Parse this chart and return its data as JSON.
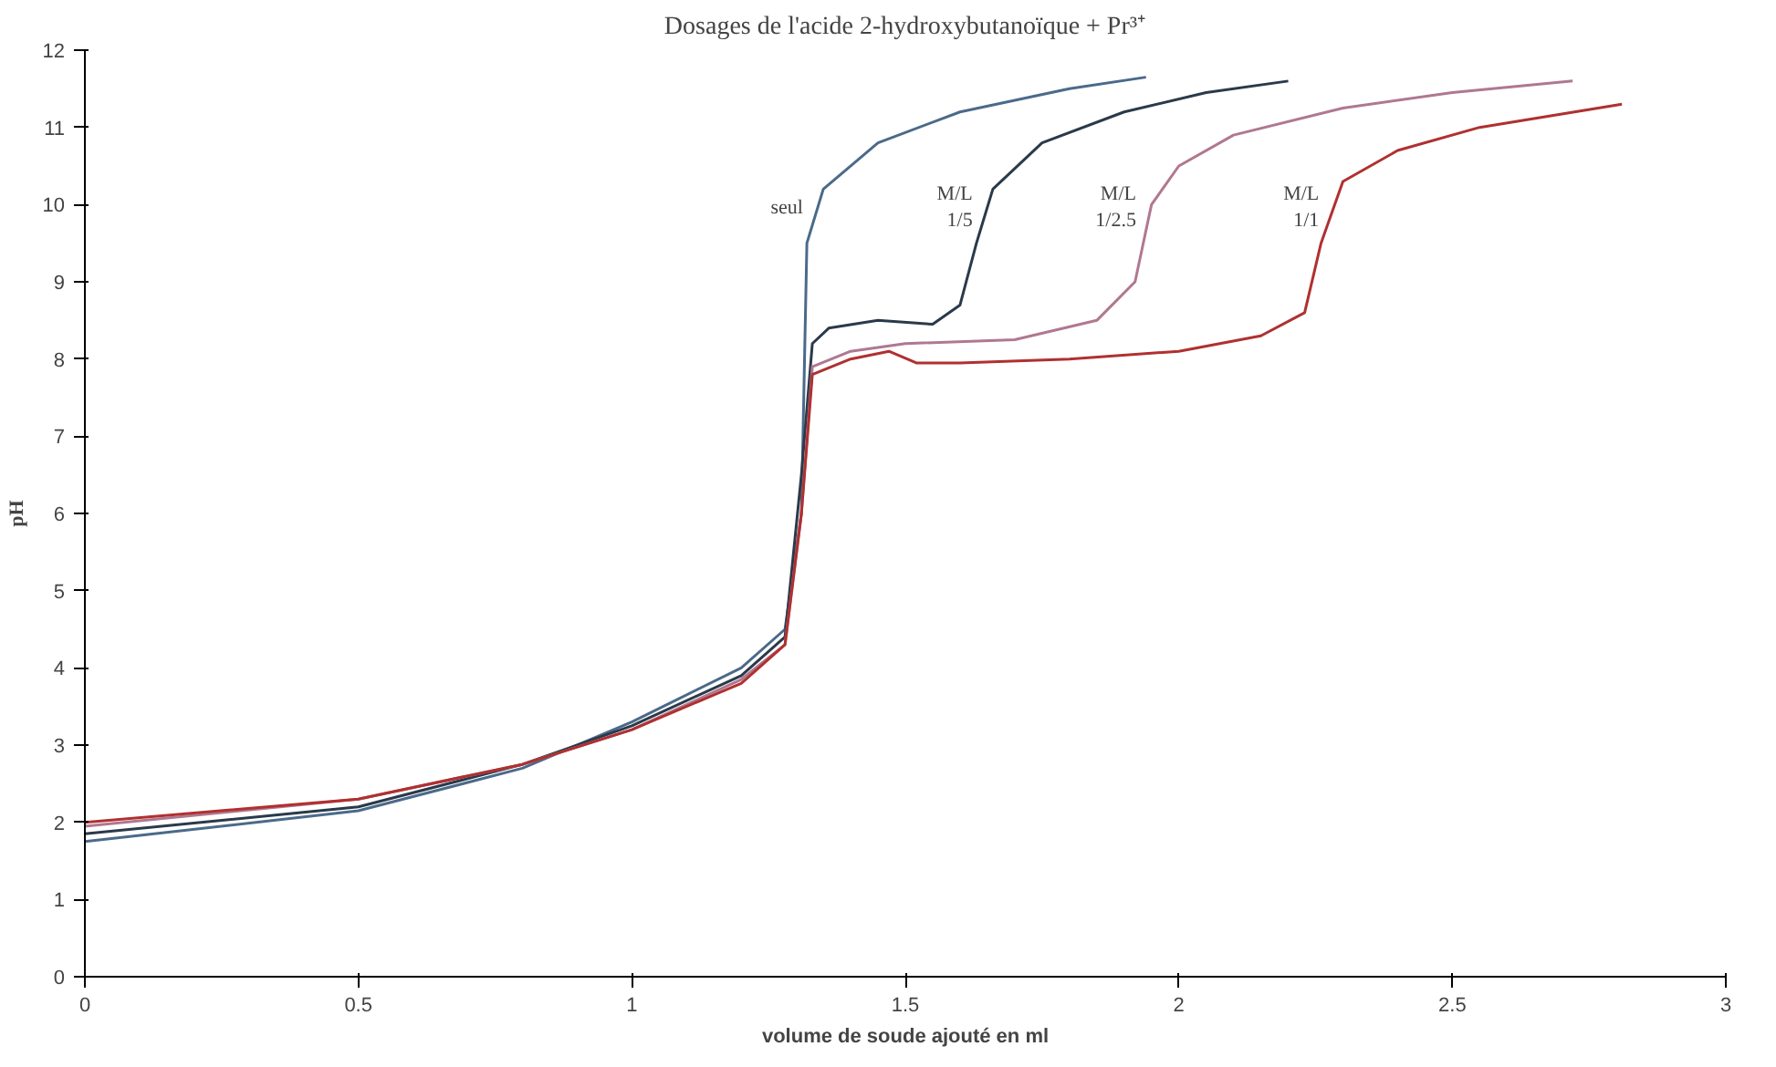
{
  "chart_data": {
    "type": "line",
    "title": "Dosages de l'acide 2-hydroxybutanoïque + Pr³⁺",
    "xlabel": "volume de soude ajouté en ml",
    "ylabel": "pH",
    "xlim": [
      0,
      3
    ],
    "ylim": [
      0,
      12
    ],
    "xticks": [
      0,
      0.5,
      1,
      1.5,
      2,
      2.5,
      3
    ],
    "yticks": [
      0,
      1,
      2,
      3,
      4,
      5,
      6,
      7,
      8,
      9,
      10,
      11,
      12
    ],
    "grid": false,
    "legend": false,
    "marker": "none",
    "line_style": "solid",
    "series": [
      {
        "name": "seul",
        "color": "#4a6a8a",
        "x": [
          0,
          0.5,
          0.8,
          1.0,
          1.2,
          1.28,
          1.31,
          1.32,
          1.35,
          1.45,
          1.6,
          1.8,
          1.94
        ],
        "values": [
          1.75,
          2.15,
          2.7,
          3.3,
          4.0,
          4.5,
          6.0,
          9.5,
          10.2,
          10.8,
          11.2,
          11.5,
          11.65
        ]
      },
      {
        "name": "M/L\n1/5",
        "color": "#2a3a4a",
        "x": [
          0,
          0.5,
          0.8,
          1.0,
          1.2,
          1.28,
          1.31,
          1.33,
          1.36,
          1.45,
          1.55,
          1.6,
          1.63,
          1.66,
          1.75,
          1.9,
          2.05,
          2.2
        ],
        "values": [
          1.85,
          2.2,
          2.75,
          3.25,
          3.9,
          4.4,
          6.5,
          8.2,
          8.4,
          8.5,
          8.45,
          8.7,
          9.5,
          10.2,
          10.8,
          11.2,
          11.45,
          11.6
        ]
      },
      {
        "name": "M/L\n1/2.5",
        "color": "#b07890",
        "x": [
          0,
          0.5,
          0.8,
          1.0,
          1.2,
          1.28,
          1.31,
          1.33,
          1.4,
          1.5,
          1.7,
          1.85,
          1.92,
          1.95,
          2.0,
          2.1,
          2.3,
          2.5,
          2.72
        ],
        "values": [
          1.95,
          2.3,
          2.75,
          3.2,
          3.85,
          4.3,
          6.0,
          7.9,
          8.1,
          8.2,
          8.25,
          8.5,
          9.0,
          10.0,
          10.5,
          10.9,
          11.25,
          11.45,
          11.6
        ]
      },
      {
        "name": "M/L\n1/1",
        "color": "#b03030",
        "x": [
          0,
          0.5,
          0.8,
          1.0,
          1.2,
          1.28,
          1.31,
          1.33,
          1.4,
          1.47,
          1.52,
          1.6,
          1.8,
          2.0,
          2.15,
          2.23,
          2.26,
          2.3,
          2.4,
          2.55,
          2.81
        ],
        "values": [
          2.0,
          2.3,
          2.75,
          3.2,
          3.8,
          4.3,
          6.0,
          7.8,
          8.0,
          8.1,
          7.95,
          7.95,
          8.0,
          8.1,
          8.3,
          8.6,
          9.5,
          10.3,
          10.7,
          11.0,
          11.3
        ]
      }
    ]
  }
}
